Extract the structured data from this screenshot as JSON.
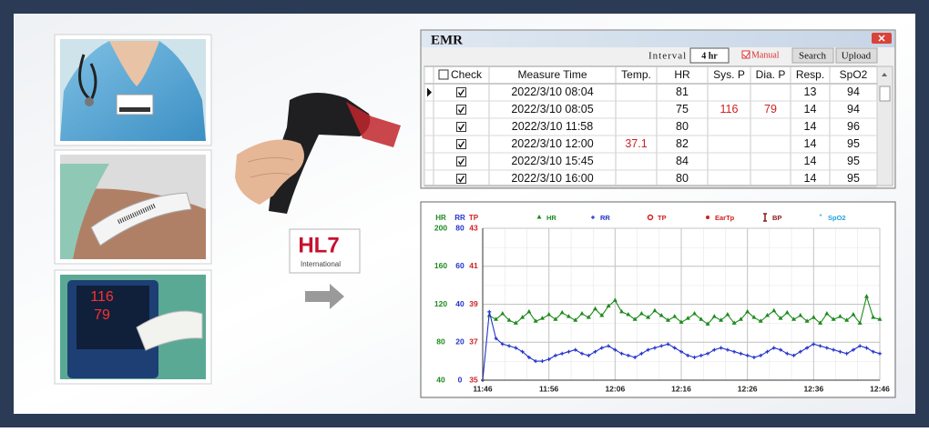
{
  "images": {
    "monitor_readings": [
      "116",
      "79"
    ]
  },
  "logo": {
    "title": "HL7",
    "subtitle": "International"
  },
  "emr": {
    "title": "EMR",
    "interval_label": "Interval",
    "interval_value": "4 hr",
    "manual": "Manual",
    "buttons": [
      "Search",
      "Upload"
    ],
    "columns": [
      "Check",
      "Measure Time",
      "Temp.",
      "HR",
      "Sys. P",
      "Dia. P",
      "Resp.",
      "SpO2"
    ],
    "rows": [
      [
        true,
        "2022/3/10  08:04",
        null,
        81,
        null,
        null,
        13,
        94
      ],
      [
        true,
        "2022/3/10 08:05",
        null,
        75,
        116,
        79,
        14,
        94
      ],
      [
        true,
        "2022/3/10 11:58",
        null,
        80,
        null,
        null,
        14,
        96
      ],
      [
        true,
        "2022/3/10 12:00",
        37.1,
        82,
        null,
        null,
        14,
        95
      ],
      [
        true,
        "2022/3/10  15:45",
        null,
        84,
        null,
        null,
        14,
        95
      ],
      [
        true,
        "2022/3/10  16:00",
        null,
        80,
        null,
        null,
        14,
        95
      ]
    ]
  },
  "chart_data": {
    "type": "line",
    "x": [
      "11:46",
      "11:47",
      "11:48",
      "11:49",
      "11:50",
      "11:51",
      "11:52",
      "11:53",
      "11:54",
      "11:55",
      "11:56",
      "11:57",
      "11:58",
      "11:59",
      "12:00",
      "12:01",
      "12:02",
      "12:03",
      "12:04",
      "12:05",
      "12:06",
      "12:07",
      "12:08",
      "12:09",
      "12:10",
      "12:11",
      "12:12",
      "12:13",
      "12:14",
      "12:15",
      "12:16",
      "12:17",
      "12:18",
      "12:19",
      "12:20",
      "12:21",
      "12:22",
      "12:23",
      "12:24",
      "12:25",
      "12:26",
      "12:27",
      "12:28",
      "12:29",
      "12:30",
      "12:31",
      "12:32",
      "12:33",
      "12:34",
      "12:35",
      "12:36",
      "12:37",
      "12:38",
      "12:39",
      "12:40",
      "12:41",
      "12:42",
      "12:43",
      "12:44",
      "12:45",
      "12:46"
    ],
    "xlim": [
      "11:46",
      "12:46"
    ],
    "xticks": [
      "11:46",
      "11:56",
      "12:06",
      "12:16",
      "12:26",
      "12:36",
      "12:46"
    ],
    "ylabel": "HR",
    "ycolor": "#1e8a1e",
    "ylim": [
      40,
      200
    ],
    "yticks": [
      40,
      80,
      120,
      160,
      200
    ],
    "y2label": "RR",
    "y2color": "#2233cc",
    "y2lim": [
      0,
      80
    ],
    "y2ticks": [
      0,
      20,
      40,
      60,
      80
    ],
    "y3label": "TP",
    "y3color": "#d02020",
    "y3lim": [
      35,
      43
    ],
    "y3ticks": [
      35,
      37,
      39,
      41,
      43
    ],
    "grid": true,
    "series": [
      {
        "name": "HR",
        "color": "#1e8a1e",
        "marker": "triangle",
        "values": [
          null,
          108,
          104,
          110,
          103,
          100,
          106,
          112,
          102,
          105,
          109,
          104,
          111,
          107,
          103,
          110,
          106,
          115,
          108,
          118,
          124,
          112,
          109,
          104,
          110,
          106,
          113,
          108,
          103,
          107,
          101,
          105,
          110,
          104,
          99,
          107,
          103,
          109,
          100,
          104,
          112,
          106,
          102,
          108,
          113,
          105,
          111,
          104,
          108,
          102,
          106,
          100,
          110,
          104,
          107,
          103,
          109,
          100,
          128,
          106,
          104
        ]
      },
      {
        "name": "RR",
        "color": "#2233cc",
        "marker": "plus",
        "axis": "y2",
        "values": [
          0,
          36,
          22,
          19,
          18,
          17,
          15,
          12,
          10,
          10,
          11,
          13,
          14,
          15,
          16,
          14,
          13,
          15,
          17,
          18,
          16,
          14,
          13,
          12,
          14,
          16,
          17,
          18,
          19,
          17,
          15,
          13,
          12,
          13,
          14,
          16,
          17,
          16,
          15,
          14,
          13,
          12,
          13,
          15,
          17,
          16,
          14,
          13,
          15,
          17,
          19,
          18,
          17,
          16,
          15,
          14,
          16,
          18,
          17,
          15,
          14
        ]
      }
    ],
    "legend_extra": [
      {
        "name": "TP",
        "color": "#d02020",
        "marker": "ring"
      },
      {
        "name": "EarTp",
        "color": "#d02020",
        "marker": "dot"
      },
      {
        "name": "BP",
        "color": "#8b1a1a",
        "marker": "bar"
      },
      {
        "name": "SpO2",
        "color": "#20a0e0",
        "marker": "star"
      }
    ]
  }
}
